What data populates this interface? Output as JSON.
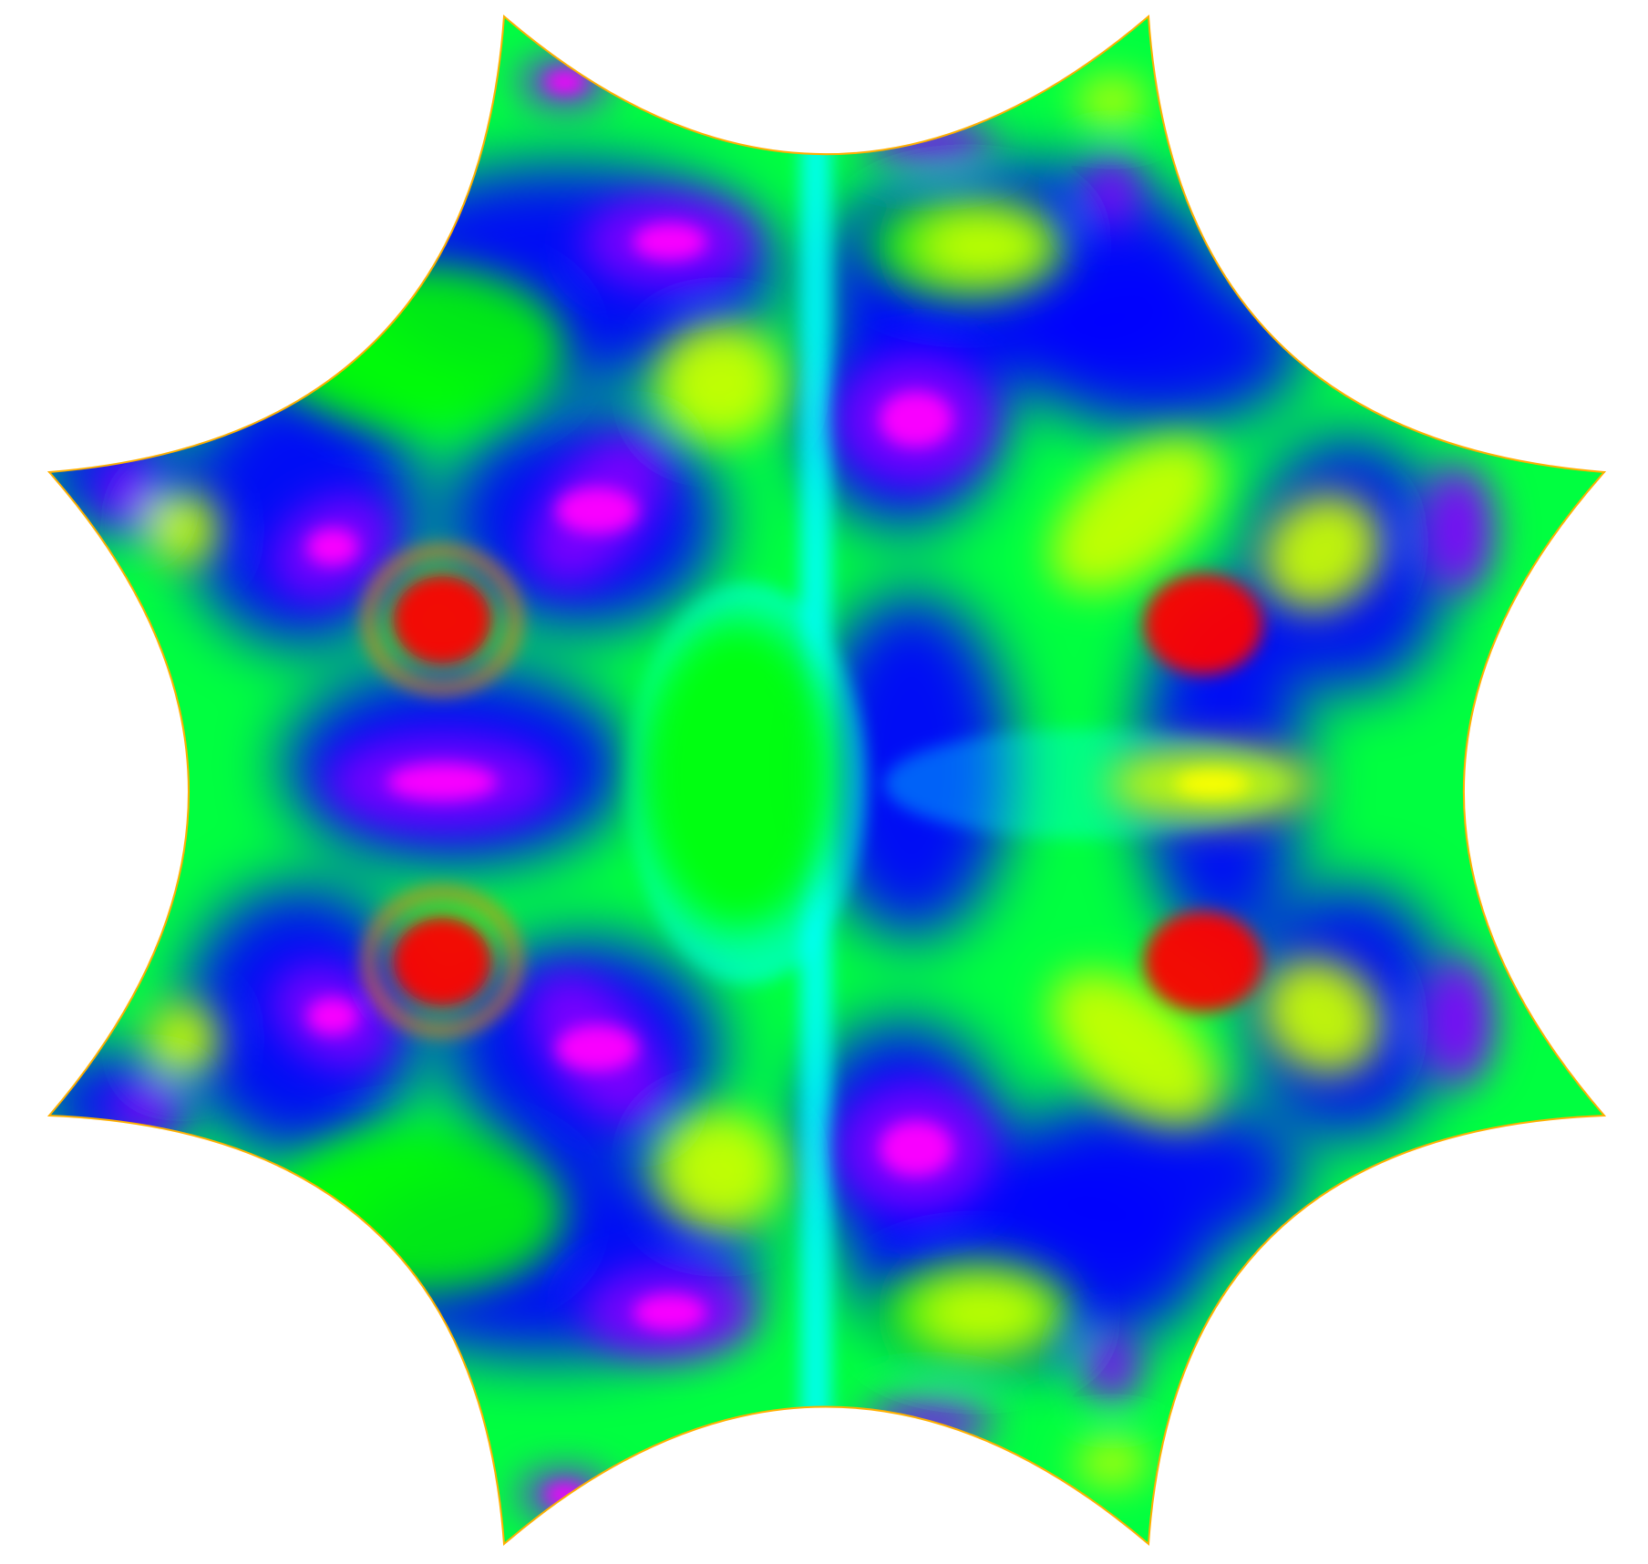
{
  "image": {
    "subject": "octagonal-membrane-heat-pattern",
    "background_color": "#ffffff",
    "colors": {
      "magenta": "#ff00ff",
      "violet": "#8000ff",
      "blue": "#0000ff",
      "cyan": "#00ffff",
      "green": "#00ff00",
      "yellow_green": "#c8ff00",
      "yellow": "#ffff00",
      "orange": "#ff8000",
      "red": "#ff0000"
    }
  }
}
